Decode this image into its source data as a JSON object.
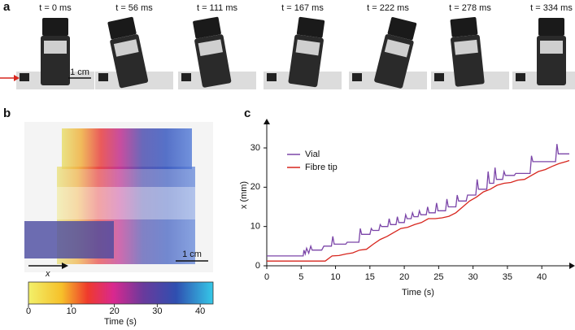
{
  "panel_labels": [
    "a",
    "b",
    "c"
  ],
  "panel_a": {
    "frames": [
      "t = 0 ms",
      "t = 56 ms",
      "t = 111 ms",
      "t = 167 ms",
      "t = 222 ms",
      "t = 278 ms",
      "t = 334 ms"
    ],
    "scale": "1 cm"
  },
  "panel_b": {
    "scale": "1 cm",
    "axis": "x",
    "colorbar": {
      "lim": [
        0,
        43
      ],
      "ticks": [
        0,
        10,
        20,
        30,
        40
      ],
      "label": "Time (s)"
    }
  },
  "chart_data": {
    "type": "line",
    "xlabel": "Time (s)",
    "ylabel": "x (mm)",
    "xlim": [
      0,
      44
    ],
    "ylim": [
      0,
      36
    ],
    "xticks": [
      0,
      5,
      10,
      15,
      20,
      25,
      30,
      35,
      40
    ],
    "yticks": [
      0,
      10,
      20,
      30
    ],
    "legend": "upper left",
    "series": [
      {
        "name": "Vial",
        "color": "#7b45a8",
        "x": [
          0,
          5.3,
          5.4,
          5.6,
          5.8,
          6.1,
          6.4,
          6.6,
          8,
          8.3,
          9.4,
          9.6,
          9.8,
          11.5,
          11.7,
          13.4,
          13.6,
          13.8,
          15,
          15.2,
          15.4,
          16.3,
          16.5,
          16.7,
          17.6,
          17.8,
          18,
          18.8,
          19,
          19.2,
          20,
          20.2,
          20.4,
          21,
          21.2,
          21.4,
          22,
          22.2,
          22.4,
          23.2,
          23.4,
          23.6,
          24.5,
          24.7,
          24.9,
          26,
          26.2,
          26.4,
          27.5,
          27.7,
          27.9,
          29,
          29.2,
          30.4,
          30.6,
          30.8,
          32,
          32.2,
          32.4,
          33,
          33.2,
          33.4,
          34.3,
          34.5,
          34.7,
          36,
          36.2,
          38.3,
          38.5,
          38.7,
          42,
          42.2,
          42.4,
          44
        ],
        "values": [
          2.5,
          2.5,
          4,
          3,
          4.5,
          3.2,
          5,
          4,
          4,
          5,
          5,
          7.5,
          5.5,
          5.5,
          6,
          6,
          9.5,
          8,
          8,
          9.5,
          9,
          9,
          10.5,
          10,
          10,
          12,
          10.5,
          10.5,
          12.5,
          11,
          11,
          13,
          12,
          12,
          13.5,
          12.5,
          12.5,
          14,
          13,
          13,
          15,
          13.5,
          13.5,
          16,
          14,
          14,
          17,
          15,
          15,
          18,
          16.5,
          16.5,
          18,
          18,
          22,
          19.5,
          19.5,
          24,
          21,
          21,
          25,
          22,
          22,
          24,
          23,
          23,
          23.5,
          23.5,
          28,
          26.5,
          26.5,
          31,
          28.5,
          28.5
        ]
      },
      {
        "name": "Fibre tip",
        "color": "#d7261e",
        "x": [
          0,
          8.5,
          9.5,
          10.5,
          11.5,
          12.5,
          13.5,
          14.5,
          15.5,
          16.5,
          17.5,
          18.5,
          19.5,
          20.5,
          21.5,
          22.5,
          23.5,
          24.5,
          25.5,
          26.5,
          27.5,
          28.5,
          29.5,
          30.5,
          31.5,
          32.5,
          33.5,
          34.5,
          35.5,
          36.5,
          37.5,
          38.5,
          39.5,
          40.5,
          41.5,
          42.5,
          43.5,
          44
        ],
        "values": [
          1.2,
          1.2,
          2.5,
          2.6,
          3,
          3.3,
          4,
          4.2,
          5.5,
          6.7,
          7.5,
          8.5,
          9.5,
          9.8,
          10.5,
          11,
          12,
          12,
          12.2,
          12.6,
          13.5,
          15,
          16.5,
          17.5,
          18.8,
          19.5,
          20.5,
          21,
          21.2,
          21.8,
          22,
          23,
          24,
          24.5,
          25.3,
          26,
          26.5,
          26.8
        ]
      }
    ]
  }
}
